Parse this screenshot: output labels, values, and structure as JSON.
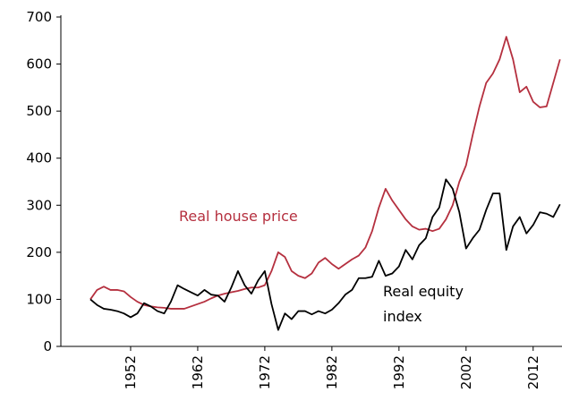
{
  "chart_data": {
    "type": "line",
    "x": [
      1946,
      1947,
      1948,
      1949,
      1950,
      1951,
      1952,
      1953,
      1954,
      1955,
      1956,
      1957,
      1958,
      1959,
      1960,
      1961,
      1962,
      1963,
      1964,
      1965,
      1966,
      1967,
      1968,
      1969,
      1970,
      1971,
      1972,
      1973,
      1974,
      1975,
      1976,
      1977,
      1978,
      1979,
      1980,
      1981,
      1982,
      1983,
      1984,
      1985,
      1986,
      1987,
      1988,
      1989,
      1990,
      1991,
      1992,
      1993,
      1994,
      1995,
      1996,
      1997,
      1998,
      1999,
      2000,
      2001,
      2002,
      2003,
      2004,
      2005,
      2006,
      2007,
      2008,
      2009,
      2010,
      2011,
      2012,
      2013,
      2014,
      2015,
      2016
    ],
    "series": [
      {
        "name": "Real house price",
        "color": "#b5303f",
        "values": [
          100,
          120,
          127,
          120,
          120,
          117,
          105,
          95,
          88,
          85,
          83,
          82,
          80,
          80,
          80,
          85,
          90,
          95,
          102,
          108,
          112,
          115,
          118,
          122,
          125,
          125,
          130,
          160,
          200,
          190,
          160,
          150,
          145,
          155,
          178,
          188,
          175,
          165,
          175,
          185,
          193,
          210,
          245,
          295,
          335,
          310,
          290,
          270,
          255,
          248,
          250,
          245,
          250,
          270,
          300,
          350,
          385,
          450,
          510,
          560,
          580,
          610,
          658,
          610,
          540,
          552,
          520,
          508,
          510,
          560,
          610
        ]
      },
      {
        "name": "Real equity index",
        "color": "#000000",
        "values": [
          100,
          88,
          80,
          78,
          75,
          70,
          62,
          70,
          92,
          85,
          75,
          70,
          95,
          130,
          122,
          115,
          108,
          120,
          110,
          108,
          95,
          125,
          160,
          130,
          112,
          140,
          160,
          90,
          35,
          70,
          58,
          75,
          75,
          68,
          75,
          70,
          78,
          92,
          110,
          120,
          145,
          145,
          148,
          182,
          150,
          155,
          170,
          205,
          185,
          215,
          230,
          275,
          295,
          355,
          335,
          285,
          208,
          230,
          248,
          290,
          325,
          325,
          205,
          255,
          275,
          240,
          258,
          285,
          282,
          275,
          302
        ]
      }
    ],
    "xlim": [
      1941.6,
      2016.3
    ],
    "xticks": [
      1952,
      1962,
      1972,
      1982,
      1992,
      2002,
      2012
    ],
    "ylim": [
      0,
      700
    ],
    "yticks": [
      0,
      100,
      200,
      300,
      400,
      500,
      600,
      700
    ],
    "grid": false
  }
}
